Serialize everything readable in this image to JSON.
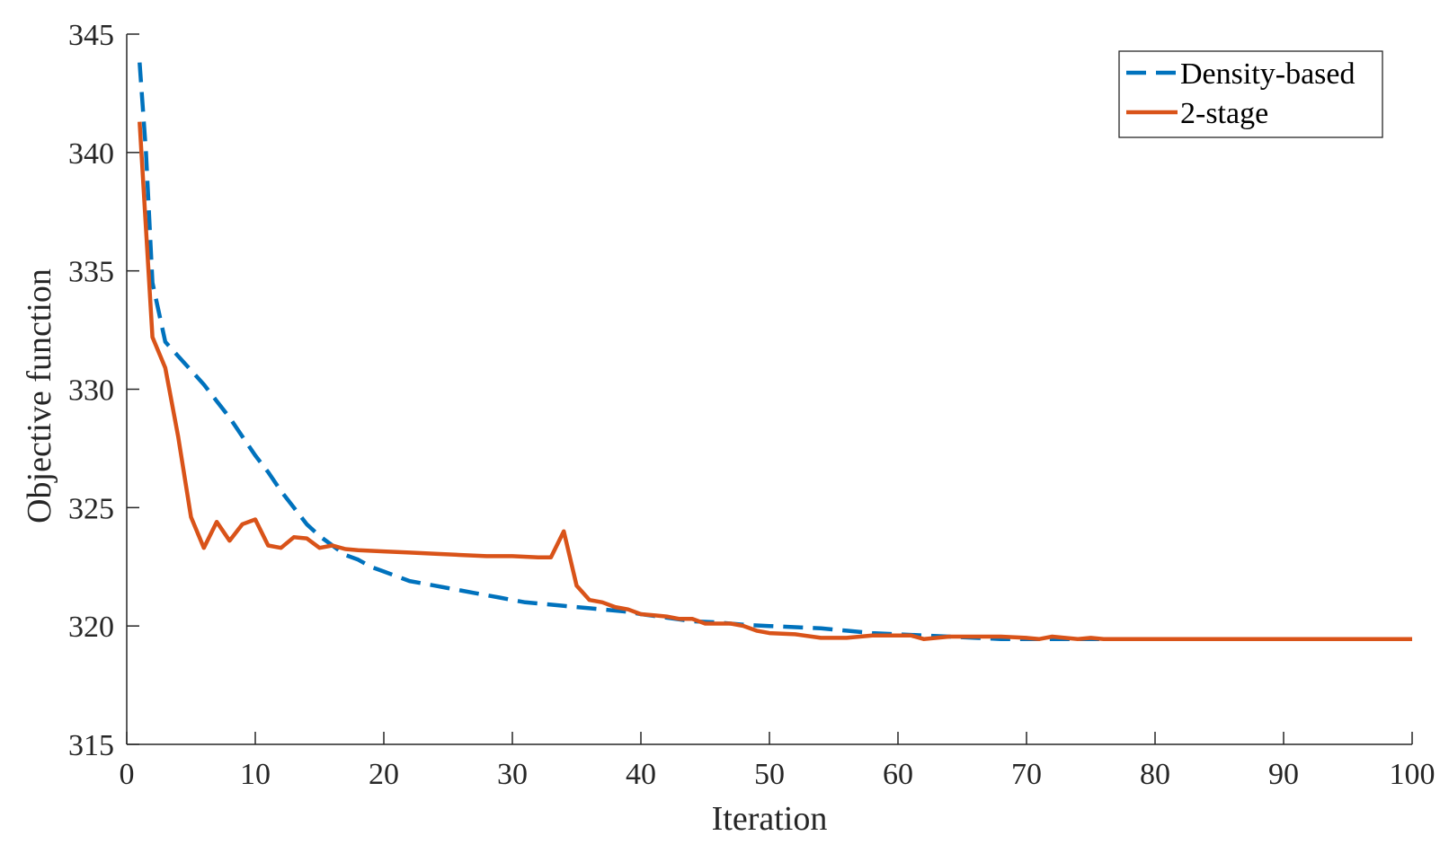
{
  "chart_data": {
    "type": "line",
    "title": "",
    "xlabel": "Iteration",
    "ylabel": "Objective function",
    "xlim": [
      0,
      100
    ],
    "ylim": [
      315,
      345
    ],
    "xticks": [
      0,
      10,
      20,
      30,
      40,
      50,
      60,
      70,
      80,
      90,
      100
    ],
    "yticks": [
      315,
      320,
      325,
      330,
      335,
      340,
      345
    ],
    "grid": false,
    "legend_position": "top-right",
    "series": [
      {
        "name": "Density-based",
        "color": "#0072BD",
        "line_style": "dashed",
        "points": [
          [
            1,
            343.8
          ],
          [
            1.5,
            340
          ],
          [
            2,
            334.5
          ],
          [
            3,
            332
          ],
          [
            4,
            331.4
          ],
          [
            5,
            330.8
          ],
          [
            6,
            330.2
          ],
          [
            7,
            329.5
          ],
          [
            8,
            328.8
          ],
          [
            9,
            328.0
          ],
          [
            10,
            327.2
          ],
          [
            11,
            326.5
          ],
          [
            12,
            325.7
          ],
          [
            13,
            325.0
          ],
          [
            14,
            324.3
          ],
          [
            15,
            323.8
          ],
          [
            16,
            323.4
          ],
          [
            17,
            323.0
          ],
          [
            18,
            322.8
          ],
          [
            19,
            322.5
          ],
          [
            20,
            322.3
          ],
          [
            21,
            322.1
          ],
          [
            22,
            321.9
          ],
          [
            23,
            321.8
          ],
          [
            24,
            321.7
          ],
          [
            25,
            321.6
          ],
          [
            26,
            321.5
          ],
          [
            27,
            321.4
          ],
          [
            28,
            321.3
          ],
          [
            29,
            321.2
          ],
          [
            30,
            321.1
          ],
          [
            31,
            321.0
          ],
          [
            32,
            320.95
          ],
          [
            33,
            320.9
          ],
          [
            34,
            320.85
          ],
          [
            35,
            320.8
          ],
          [
            36,
            320.75
          ],
          [
            37,
            320.7
          ],
          [
            38,
            320.65
          ],
          [
            39,
            320.6
          ],
          [
            40,
            320.5
          ],
          [
            42,
            320.35
          ],
          [
            44,
            320.2
          ],
          [
            46,
            320.15
          ],
          [
            48,
            320.05
          ],
          [
            50,
            320.0
          ],
          [
            52,
            319.95
          ],
          [
            54,
            319.9
          ],
          [
            56,
            319.8
          ],
          [
            58,
            319.7
          ],
          [
            60,
            319.65
          ],
          [
            62,
            319.6
          ],
          [
            64,
            319.55
          ],
          [
            66,
            319.5
          ],
          [
            68,
            319.45
          ],
          [
            70,
            319.45
          ],
          [
            72,
            319.45
          ],
          [
            74,
            319.45
          ],
          [
            76,
            319.45
          ],
          [
            78,
            319.45
          ],
          [
            80,
            319.45
          ],
          [
            85,
            319.45
          ],
          [
            90,
            319.45
          ],
          [
            95,
            319.45
          ],
          [
            100,
            319.45
          ]
        ]
      },
      {
        "name": "2-stage",
        "color": "#D95319",
        "line_style": "solid",
        "points": [
          [
            1,
            341.3
          ],
          [
            2,
            332.2
          ],
          [
            3,
            330.9
          ],
          [
            4,
            328.0
          ],
          [
            5,
            324.6
          ],
          [
            6,
            323.3
          ],
          [
            7,
            324.4
          ],
          [
            8,
            323.6
          ],
          [
            9,
            324.3
          ],
          [
            10,
            324.5
          ],
          [
            11,
            323.4
          ],
          [
            12,
            323.3
          ],
          [
            13,
            323.75
          ],
          [
            14,
            323.7
          ],
          [
            15,
            323.3
          ],
          [
            16,
            323.4
          ],
          [
            17,
            323.25
          ],
          [
            18,
            323.2
          ],
          [
            20,
            323.15
          ],
          [
            22,
            323.1
          ],
          [
            24,
            323.05
          ],
          [
            26,
            323.0
          ],
          [
            28,
            322.95
          ],
          [
            30,
            322.95
          ],
          [
            32,
            322.9
          ],
          [
            33,
            322.9
          ],
          [
            34,
            324.0
          ],
          [
            35,
            321.7
          ],
          [
            36,
            321.1
          ],
          [
            37,
            321.0
          ],
          [
            38,
            320.8
          ],
          [
            39,
            320.7
          ],
          [
            40,
            320.5
          ],
          [
            41,
            320.45
          ],
          [
            42,
            320.4
          ],
          [
            43,
            320.3
          ],
          [
            44,
            320.3
          ],
          [
            45,
            320.1
          ],
          [
            46,
            320.1
          ],
          [
            47,
            320.1
          ],
          [
            48,
            320.0
          ],
          [
            49,
            319.8
          ],
          [
            50,
            319.7
          ],
          [
            52,
            319.65
          ],
          [
            54,
            319.5
          ],
          [
            56,
            319.5
          ],
          [
            58,
            319.6
          ],
          [
            60,
            319.6
          ],
          [
            61,
            319.6
          ],
          [
            62,
            319.45
          ],
          [
            64,
            319.55
          ],
          [
            66,
            319.55
          ],
          [
            68,
            319.55
          ],
          [
            70,
            319.5
          ],
          [
            71,
            319.45
          ],
          [
            72,
            319.55
          ],
          [
            73,
            319.5
          ],
          [
            74,
            319.45
          ],
          [
            75,
            319.5
          ],
          [
            76,
            319.45
          ],
          [
            78,
            319.45
          ],
          [
            80,
            319.45
          ],
          [
            85,
            319.45
          ],
          [
            90,
            319.45
          ],
          [
            95,
            319.45
          ],
          [
            100,
            319.45
          ]
        ]
      }
    ]
  }
}
